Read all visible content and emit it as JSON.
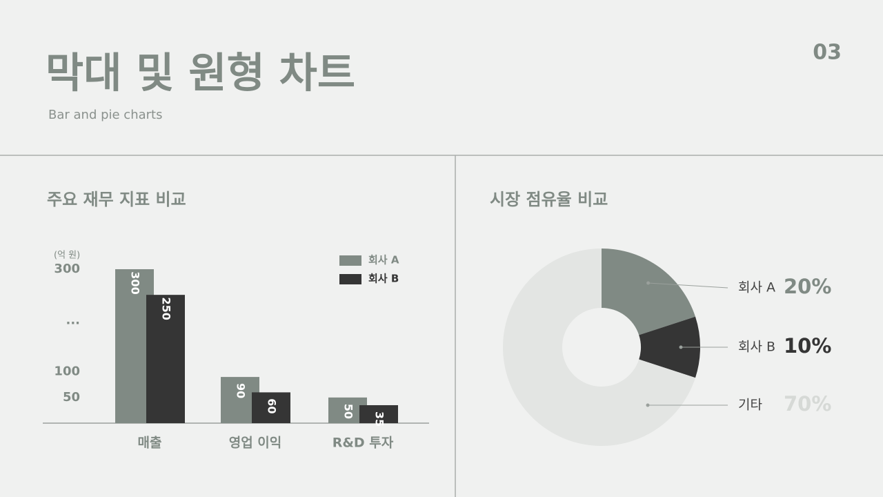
{
  "header": {
    "title": "막대 및 원형 차트",
    "subtitle": "Bar and pie charts",
    "page": "03"
  },
  "chart_data": [
    {
      "type": "bar",
      "title": "주요 재무 지표 비교",
      "y_label": "(억 원)",
      "categories": [
        "매출",
        "영업 이익",
        "R&D 투자"
      ],
      "series": [
        {
          "name": "회사 A",
          "color": "#808a84",
          "values": [
            300,
            90,
            50
          ]
        },
        {
          "name": "회사 B",
          "color": "#353535",
          "values": [
            250,
            60,
            35
          ]
        }
      ],
      "ylim": [
        0,
        300
      ],
      "yticks": [
        50,
        100,
        {
          "value": 200,
          "label": "..."
        },
        300
      ],
      "grid": false,
      "legend": "upper right"
    },
    {
      "type": "pie",
      "title": "시장 점유율 비교",
      "categories": [
        "회사 A",
        "회사 B",
        "기타"
      ],
      "values": [
        20,
        10,
        70
      ],
      "value_labels": [
        "20%",
        "10%",
        "70%"
      ],
      "colors": [
        "#808a84",
        "#353535",
        "#e3e5e3"
      ],
      "donut": true
    }
  ]
}
